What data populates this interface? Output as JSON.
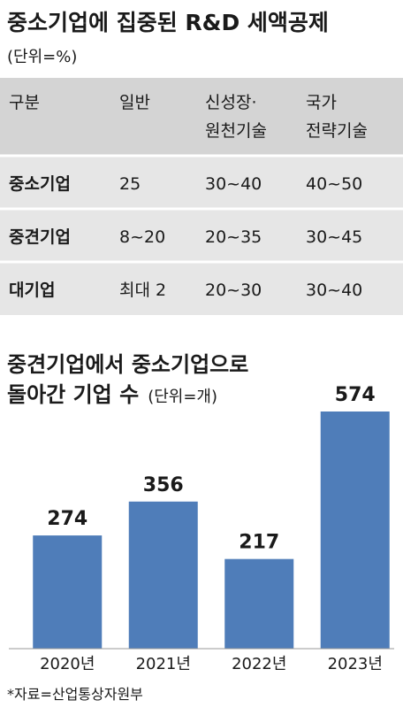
{
  "header": {
    "title": "중소기업에 집중된 R&D 세액공제",
    "unit": "(단위=%)"
  },
  "table": {
    "columns": [
      [
        "구분"
      ],
      [
        "일반"
      ],
      [
        "신성장·",
        "원천기술"
      ],
      [
        "국가",
        "전략기술"
      ]
    ],
    "rows": [
      [
        "중소기업",
        "25",
        "30~40",
        "40~50"
      ],
      [
        "중견기업",
        "8~20",
        "20~35",
        "30~45"
      ],
      [
        "대기업",
        "최대 2",
        "20~30",
        "30~40"
      ]
    ]
  },
  "chart_data": {
    "type": "bar",
    "title": [
      "중견기업에서 중소기업으로",
      "돌아간 기업 수"
    ],
    "unit": "(단위=개)",
    "categories": [
      "2020년",
      "2021년",
      "2022년",
      "2023년"
    ],
    "values": [
      274,
      356,
      217,
      574
    ],
    "color": "#4f7db9"
  },
  "source": "*자료=산업통상자원부"
}
